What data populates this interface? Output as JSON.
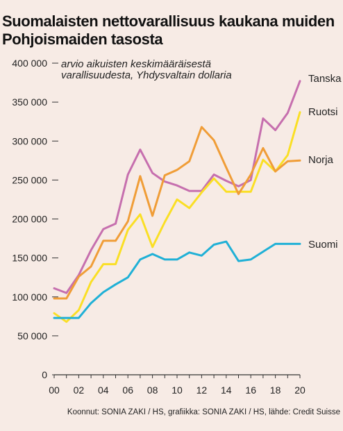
{
  "title": "Suomalaisten nettovarallisuus kaukana muiden Pohjoismaiden tasosta",
  "credits": "Koonnut: SONIA ZAKI / HS, grafiikka: SONIA ZAKI / HS, lähde: Credit Suisse",
  "chart_data": {
    "type": "line",
    "title": "Suomalaisten nettovarallisuus kaukana muiden Pohjoismaiden tasosta",
    "subtitle": [
      "arvio aikuisten keskimääräisestä",
      "varallisuudesta, Yhdysvaltain dollaria"
    ],
    "x": [
      0,
      1,
      2,
      3,
      4,
      5,
      6,
      7,
      8,
      9,
      10,
      11,
      12,
      13,
      14,
      15,
      16,
      17,
      18,
      19,
      20
    ],
    "x_tick_values": [
      0,
      2,
      4,
      6,
      8,
      10,
      12,
      14,
      16,
      18,
      20
    ],
    "x_tick_labels": [
      "00",
      "02",
      "04",
      "06",
      "08",
      "10",
      "12",
      "14",
      "16",
      "18",
      "20"
    ],
    "ylim": [
      0,
      400000
    ],
    "y_tick_values": [
      0,
      50000,
      100000,
      150000,
      200000,
      250000,
      300000,
      350000,
      400000
    ],
    "y_tick_labels": [
      "0",
      "50 000",
      "100 000",
      "150 000",
      "200 000",
      "250 000",
      "300 000",
      "350 000",
      "400 000"
    ],
    "grid": false,
    "series": [
      {
        "name": "Tanska",
        "color": "#c66fae",
        "values": [
          111000,
          105000,
          128000,
          160000,
          187000,
          194000,
          257000,
          289000,
          259000,
          248000,
          243000,
          236000,
          236000,
          257000,
          249000,
          242000,
          250000,
          329000,
          314000,
          336000,
          377000
        ]
      },
      {
        "name": "Ruotsi",
        "color": "#fadf25",
        "values": [
          79000,
          68000,
          83000,
          119000,
          142000,
          142000,
          186000,
          206000,
          164000,
          196000,
          225000,
          214000,
          234000,
          252000,
          235000,
          235000,
          235000,
          276000,
          261000,
          282000,
          337000
        ]
      },
      {
        "name": "Norja",
        "color": "#f09d37",
        "values": [
          98000,
          98000,
          126000,
          139000,
          172000,
          172000,
          197000,
          255000,
          204000,
          256000,
          263000,
          274000,
          318000,
          301000,
          266000,
          232000,
          257000,
          291000,
          261000,
          274000,
          275000
        ]
      },
      {
        "name": "Suomi",
        "color": "#1fb0d6",
        "values": [
          73000,
          73000,
          73000,
          92000,
          106000,
          116000,
          125000,
          148000,
          155000,
          148000,
          148000,
          157000,
          153000,
          167000,
          171000,
          146000,
          148000,
          158000,
          168000,
          168000,
          168000
        ]
      }
    ]
  }
}
